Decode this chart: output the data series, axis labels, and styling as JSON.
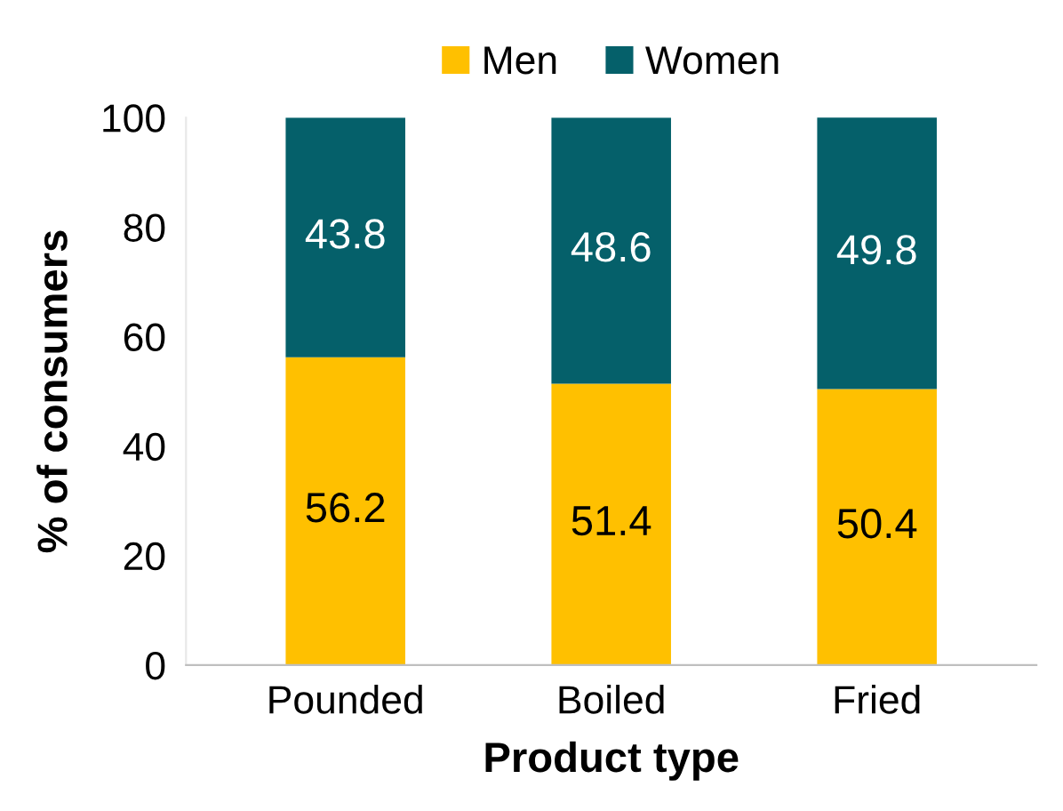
{
  "chart_data": {
    "type": "bar",
    "stacked": true,
    "xlabel": "Product type",
    "ylabel": "% of consumers",
    "categories": [
      "Pounded",
      "Boiled",
      "Fried"
    ],
    "series": [
      {
        "name": "Men",
        "color": "#ffc000",
        "values": [
          56.2,
          51.4,
          50.4
        ]
      },
      {
        "name": "Women",
        "color": "#05606a",
        "values": [
          43.8,
          48.6,
          49.8
        ]
      }
    ],
    "ylim": [
      0,
      100
    ],
    "yticks": [
      0,
      20,
      40,
      60,
      80,
      100
    ],
    "grid": false,
    "legend": "top",
    "data_labels": true
  }
}
